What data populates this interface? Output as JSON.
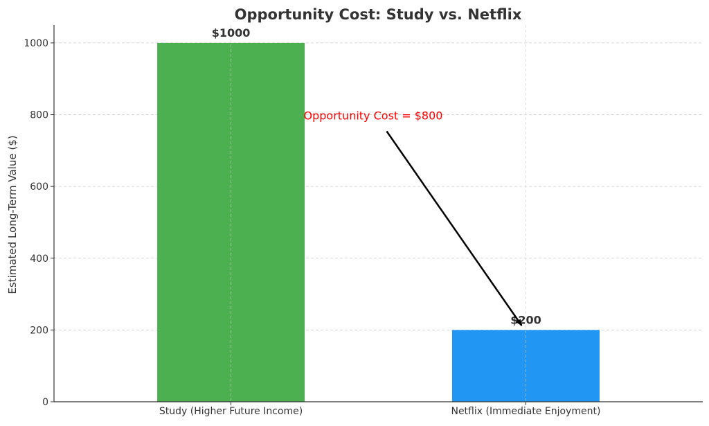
{
  "chart_data": {
    "type": "bar",
    "title": "Opportunity Cost: Study vs. Netflix",
    "xlabel": "",
    "ylabel": "Estimated Long-Term Value ($)",
    "categories": [
      "Study (Higher Future Income)",
      "Netflix (Immediate Enjoyment)"
    ],
    "values": [
      1000,
      200
    ],
    "data_labels": [
      "$1000",
      "$200"
    ],
    "colors": [
      "#4caf50",
      "#2196f3"
    ],
    "ylim": [
      0,
      1050
    ],
    "yticks": [
      0,
      200,
      400,
      600,
      800,
      1000
    ],
    "grid": true,
    "legend": "none",
    "annotation": {
      "text": "Opportunity Cost = $800",
      "color": "#ff0000",
      "text_xy": [
        0.5,
        800
      ],
      "arrow_to": [
        1,
        220
      ]
    }
  }
}
